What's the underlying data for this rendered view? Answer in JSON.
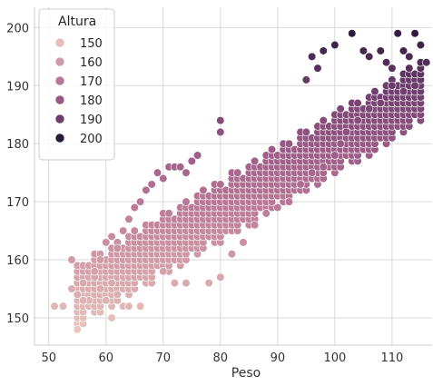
{
  "chart_data": {
    "type": "scatter",
    "xlabel": "Peso",
    "ylabel": "",
    "xlim": [
      47.5,
      117
    ],
    "ylim": [
      145.3,
      203.5
    ],
    "x_ticks": [
      50,
      60,
      70,
      80,
      90,
      100,
      110
    ],
    "y_ticks": [
      150,
      160,
      170,
      180,
      190,
      200
    ],
    "x_tick_labels": [
      "50",
      "60",
      "70",
      "80",
      "90",
      "100",
      "110"
    ],
    "y_tick_labels": [
      "150",
      "160",
      "170",
      "180",
      "190",
      "200"
    ],
    "grid": true,
    "legend_position": "top-left",
    "legend": {
      "title": "Altura",
      "items": [
        {
          "label": "150",
          "value": 150
        },
        {
          "label": "160",
          "value": 160
        },
        {
          "label": "170",
          "value": 170
        },
        {
          "label": "180",
          "value": 180
        },
        {
          "label": "190",
          "value": 190
        },
        {
          "label": "200",
          "value": 200
        }
      ]
    },
    "hue_variable": "Altura",
    "colormap": [
      "#e8c5bd",
      "#d4a0a9",
      "#bd7b97",
      "#9a5a86",
      "#6e3d6e",
      "#2a1a3a"
    ],
    "points": [
      {
        "x": 51,
        "y": 152
      },
      {
        "x": 52.5,
        "y": 152
      },
      {
        "x": 55,
        "y": 148
      },
      {
        "x": 54,
        "y": 160
      },
      {
        "x": 61,
        "y": 150
      },
      {
        "x": 54,
        "y": 155
      },
      {
        "x": 55,
        "y": 154
      },
      {
        "x": 56,
        "y": 156
      },
      {
        "x": 57,
        "y": 153
      },
      {
        "x": 58,
        "y": 157
      },
      {
        "x": 59,
        "y": 155
      },
      {
        "x": 56,
        "y": 153
      },
      {
        "x": 58,
        "y": 158
      },
      {
        "x": 59,
        "y": 160
      },
      {
        "x": 60,
        "y": 153
      },
      {
        "x": 61,
        "y": 156
      },
      {
        "x": 62,
        "y": 154
      },
      {
        "x": 63,
        "y": 152
      },
      {
        "x": 64,
        "y": 152
      },
      {
        "x": 66,
        "y": 152
      },
      {
        "x": 60,
        "y": 163
      },
      {
        "x": 61,
        "y": 164
      },
      {
        "x": 62,
        "y": 162
      },
      {
        "x": 63,
        "y": 165
      },
      {
        "x": 64,
        "y": 167
      },
      {
        "x": 65,
        "y": 169
      },
      {
        "x": 66,
        "y": 170
      },
      {
        "x": 67,
        "y": 172
      },
      {
        "x": 68,
        "y": 173
      },
      {
        "x": 69,
        "y": 175
      },
      {
        "x": 70,
        "y": 174
      },
      {
        "x": 71,
        "y": 176
      },
      {
        "x": 72,
        "y": 176
      },
      {
        "x": 73,
        "y": 176
      },
      {
        "x": 74,
        "y": 175
      },
      {
        "x": 75,
        "y": 177
      },
      {
        "x": 76,
        "y": 178
      },
      {
        "x": 80,
        "y": 182
      },
      {
        "x": 80,
        "y": 184
      },
      {
        "x": 70,
        "y": 158
      },
      {
        "x": 72,
        "y": 156
      },
      {
        "x": 74,
        "y": 156
      },
      {
        "x": 78,
        "y": 156
      },
      {
        "x": 80,
        "y": 157
      },
      {
        "x": 82,
        "y": 161
      },
      {
        "x": 84,
        "y": 163
      },
      {
        "x": 86,
        "y": 166
      },
      {
        "x": 88,
        "y": 168
      },
      {
        "x": 90,
        "y": 169
      },
      {
        "x": 92,
        "y": 170
      },
      {
        "x": 94,
        "y": 173
      },
      {
        "x": 96,
        "y": 175
      },
      {
        "x": 98,
        "y": 176
      },
      {
        "x": 100,
        "y": 178
      },
      {
        "x": 101,
        "y": 180
      },
      {
        "x": 102,
        "y": 182
      },
      {
        "x": 104,
        "y": 184
      },
      {
        "x": 106,
        "y": 186
      },
      {
        "x": 108,
        "y": 187
      },
      {
        "x": 96,
        "y": 195
      },
      {
        "x": 98,
        "y": 196
      },
      {
        "x": 103,
        "y": 199
      },
      {
        "x": 105,
        "y": 196
      },
      {
        "x": 106,
        "y": 195
      },
      {
        "x": 108,
        "y": 196
      },
      {
        "x": 109,
        "y": 194
      },
      {
        "x": 110,
        "y": 193
      },
      {
        "x": 111,
        "y": 199
      },
      {
        "x": 112,
        "y": 196
      },
      {
        "x": 113,
        "y": 195
      },
      {
        "x": 114,
        "y": 199
      },
      {
        "x": 115,
        "y": 197
      },
      {
        "x": 116,
        "y": 194
      },
      {
        "x": 114,
        "y": 190
      },
      {
        "x": 112,
        "y": 189
      },
      {
        "x": 110,
        "y": 190
      },
      {
        "x": 100,
        "y": 197
      },
      {
        "x": 97,
        "y": 193
      },
      {
        "x": 95,
        "y": 191
      }
    ],
    "dense_band": {
      "x_range": [
        55,
        115
      ],
      "slope": 0.58,
      "intercept": 122,
      "spread": 5
    }
  }
}
